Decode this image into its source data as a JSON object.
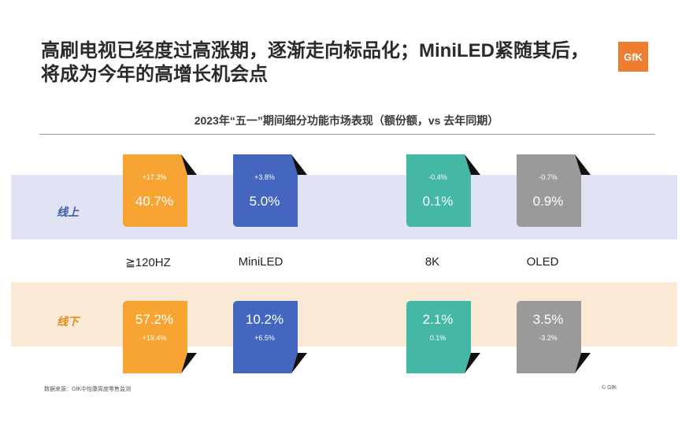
{
  "header": {
    "title_line1": "高刷电视已经度过高涨期，逐渐走向标品化；MiniLED紧随其后，",
    "title_line2": "将成为今年的高增长机会点",
    "logo_text": "GfK"
  },
  "chart_data": {
    "type": "table",
    "title": "2023年“五一”期间细分功能市场表现（额份额，vs 去年同期）",
    "categories": [
      "≧120HZ",
      "MiniLED",
      "8K",
      "OLED"
    ],
    "colors": [
      "#f7a433",
      "#4466bf",
      "#44b8a5",
      "#9a9a9a"
    ],
    "rows": [
      {
        "label": "线上",
        "shares": [
          "40.7%",
          "5.0%",
          "0.1%",
          "0.9%"
        ],
        "changes": [
          "+17.3%",
          "+3.8%",
          "-0.4%",
          "-0.7%"
        ]
      },
      {
        "label": "线下",
        "shares": [
          "57.2%",
          "10.2%",
          "2.1%",
          "3.5%"
        ],
        "changes": [
          "+19.4%",
          "+6.5%",
          "0.1%",
          "-3.2%"
        ]
      }
    ]
  },
  "footer": {
    "source": "数据来源：GfK中怡康周度零售监测",
    "copyright": "© GfK"
  }
}
